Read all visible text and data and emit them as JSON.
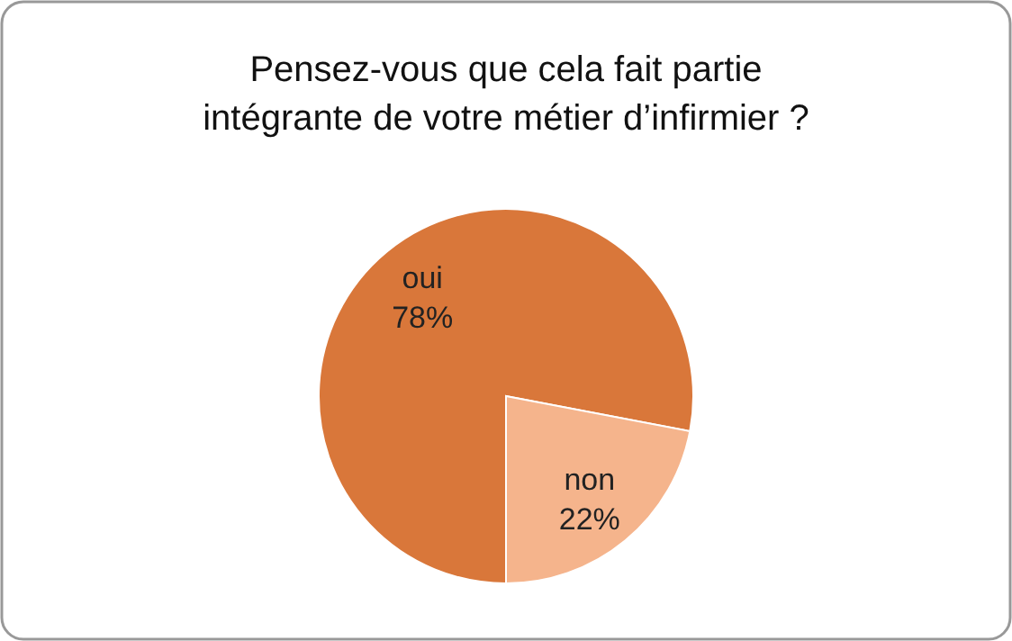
{
  "chart_data": {
    "type": "pie",
    "title": "Pensez-vous que cela fait partie intégrante de votre métier d’infirmier ?",
    "categories": [
      "oui",
      "non"
    ],
    "values": [
      78,
      22
    ],
    "colors": [
      "#d9773a",
      "#f5b48c"
    ],
    "value_labels": [
      "78%",
      "22%"
    ]
  }
}
